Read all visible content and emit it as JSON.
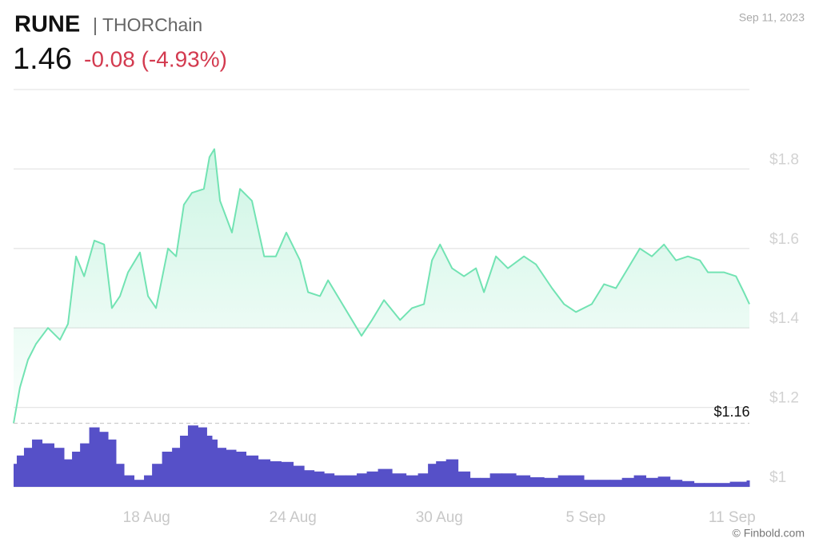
{
  "chart_data": {
    "type": "line",
    "title": "RUNE",
    "subtitle": "| THORChain",
    "price": "1.46",
    "change": "-0.08 (-4.93%)",
    "date": "Sep 11, 2023",
    "source": "© Finbold.com",
    "x": [
      12.55,
      12.81,
      13.14,
      13.47,
      13.96,
      14.45,
      14.78,
      15.11,
      15.44,
      15.86,
      16.26,
      16.58,
      16.91,
      17.24,
      17.73,
      18.06,
      18.39,
      18.88,
      19.21,
      19.53,
      19.86,
      20.35,
      20.58,
      20.78,
      21.01,
      21.5,
      21.83,
      22.32,
      22.82,
      23.3,
      23.73,
      24.29,
      24.62,
      25.11,
      25.44,
      25.93,
      26.42,
      26.81,
      27.24,
      27.73,
      28.39,
      28.88,
      29.37,
      29.7,
      30.03,
      30.52,
      31.01,
      31.5,
      31.83,
      32.32,
      32.81,
      33.47,
      33.96,
      34.62,
      35.11,
      35.6,
      36.25,
      36.75,
      37.24,
      37.73,
      38.22,
      38.71,
      39.21,
      39.7,
      40.19,
      40.68,
      41.01,
      41.66,
      42.16,
      42.48,
      42.71
    ],
    "series": [
      {
        "color": "#72e3b3",
        "values": [
          1.16,
          1.25,
          1.32,
          1.36,
          1.4,
          1.37,
          1.41,
          1.58,
          1.53,
          1.62,
          1.61,
          1.45,
          1.48,
          1.54,
          1.59,
          1.48,
          1.45,
          1.6,
          1.58,
          1.71,
          1.74,
          1.75,
          1.83,
          1.85,
          1.72,
          1.64,
          1.75,
          1.72,
          1.58,
          1.58,
          1.64,
          1.57,
          1.49,
          1.48,
          1.52,
          1.47,
          1.42,
          1.38,
          1.42,
          1.47,
          1.42,
          1.45,
          1.46,
          1.57,
          1.61,
          1.55,
          1.53,
          1.55,
          1.49,
          1.58,
          1.55,
          1.58,
          1.56,
          1.5,
          1.46,
          1.44,
          1.46,
          1.51,
          1.5,
          1.55,
          1.6,
          1.58,
          1.61,
          1.57,
          1.58,
          1.57,
          1.54,
          1.54,
          1.53,
          1.49,
          1.46
        ]
      },
      {
        "color": "#5650c8",
        "axis": "y2",
        "values": [
          36,
          49,
          61,
          74,
          68,
          61,
          43,
          55,
          68,
          93,
          86,
          74,
          36,
          18,
          11,
          18,
          36,
          55,
          61,
          80,
          96,
          93,
          80,
          74,
          61,
          58,
          55,
          49,
          43,
          40,
          39,
          33,
          26,
          24,
          21,
          18,
          18,
          21,
          24,
          28,
          21,
          18,
          21,
          36,
          40,
          43,
          24,
          14,
          14,
          21,
          21,
          18,
          15,
          14,
          18,
          18,
          11,
          11,
          11,
          14,
          18,
          14,
          16,
          11,
          9,
          6,
          6,
          6,
          8,
          8,
          10
        ]
      }
    ],
    "xlim": [
      12.55,
      42.71
    ],
    "xticks": [
      {
        "value": 18,
        "label": "18 Aug"
      },
      {
        "value": 24,
        "label": "24 Aug"
      },
      {
        "value": 30,
        "label": "30 Aug"
      },
      {
        "value": 36,
        "label": "5 Sep"
      },
      {
        "value": 42,
        "label": "11 Sep"
      }
    ],
    "ylim": [
      1,
      2
    ],
    "yticks": [
      {
        "value": 1,
        "label": "$1"
      },
      {
        "value": 1.2,
        "label": "$1.2"
      },
      {
        "value": 1.4,
        "label": "$1.4"
      },
      {
        "value": 1.6,
        "label": "$1.6"
      },
      {
        "value": 1.8,
        "label": "$1.8"
      }
    ],
    "y2lim": [
      0,
      100
    ],
    "annotation": {
      "value": 1.16,
      "label": "$1.16"
    },
    "grid": true
  }
}
